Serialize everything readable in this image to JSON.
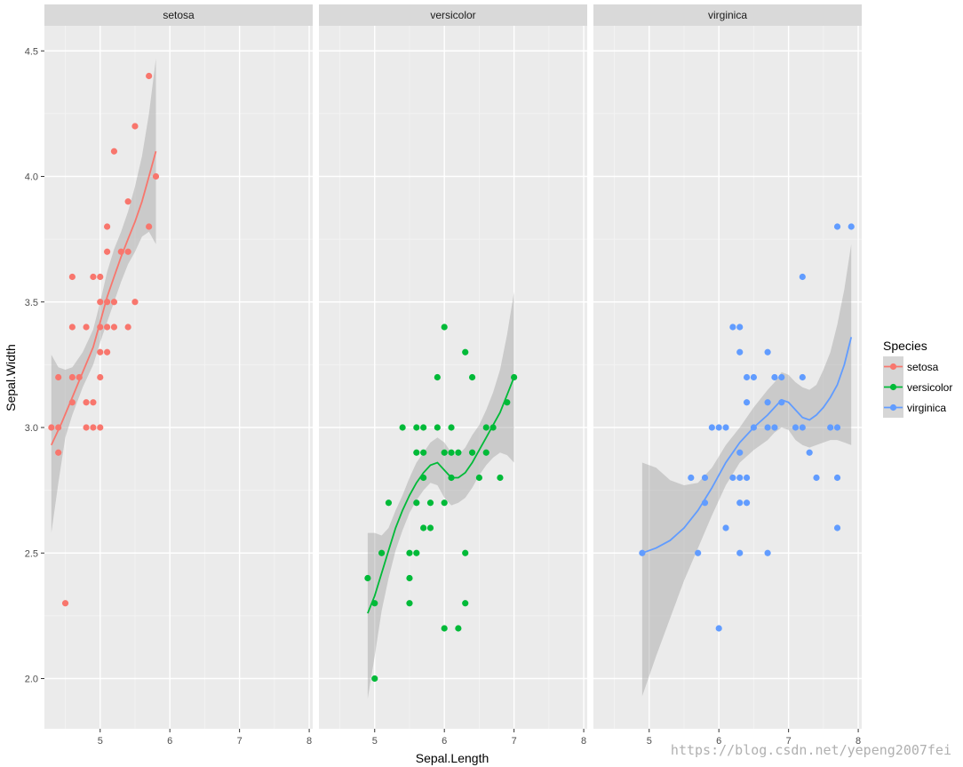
{
  "chart_data": {
    "type": "scatter",
    "facet_by": "Species",
    "xlabel": "Sepal.Length",
    "ylabel": "Sepal.Width",
    "xlim": [
      4.2,
      8.05
    ],
    "ylim": [
      1.8,
      4.6
    ],
    "xticks": [
      5,
      6,
      7,
      8
    ],
    "yticks": [
      2.0,
      2.5,
      3.0,
      3.5,
      4.0,
      4.5
    ],
    "ytick_labels": [
      "2.0",
      "2.5",
      "3.0",
      "3.5",
      "4.0",
      "4.5"
    ],
    "grid": true,
    "smooth": "loess with confidence band",
    "legend": {
      "title": "Species",
      "position": "right",
      "items": [
        {
          "label": "setosa",
          "color": "#F8766D"
        },
        {
          "label": "versicolor",
          "color": "#00BA38"
        },
        {
          "label": "virginica",
          "color": "#619CFF"
        }
      ]
    },
    "panels": [
      {
        "name": "setosa",
        "color": "#F8766D",
        "points": [
          [
            4.3,
            3.0
          ],
          [
            4.4,
            2.9
          ],
          [
            4.4,
            3.0
          ],
          [
            4.4,
            3.2
          ],
          [
            4.5,
            2.3
          ],
          [
            4.6,
            3.1
          ],
          [
            4.6,
            3.2
          ],
          [
            4.6,
            3.4
          ],
          [
            4.6,
            3.6
          ],
          [
            4.7,
            3.2
          ],
          [
            4.8,
            3.0
          ],
          [
            4.8,
            3.1
          ],
          [
            4.8,
            3.4
          ],
          [
            4.9,
            3.0
          ],
          [
            4.9,
            3.1
          ],
          [
            4.9,
            3.6
          ],
          [
            5.0,
            3.0
          ],
          [
            5.0,
            3.2
          ],
          [
            5.0,
            3.3
          ],
          [
            5.0,
            3.4
          ],
          [
            5.0,
            3.5
          ],
          [
            5.0,
            3.6
          ],
          [
            5.1,
            3.3
          ],
          [
            5.1,
            3.4
          ],
          [
            5.1,
            3.5
          ],
          [
            5.1,
            3.7
          ],
          [
            5.1,
            3.8
          ],
          [
            5.2,
            3.4
          ],
          [
            5.2,
            3.5
          ],
          [
            5.2,
            4.1
          ],
          [
            5.3,
            3.7
          ],
          [
            5.4,
            3.4
          ],
          [
            5.4,
            3.7
          ],
          [
            5.4,
            3.9
          ],
          [
            5.5,
            3.5
          ],
          [
            5.5,
            4.2
          ],
          [
            5.7,
            3.8
          ],
          [
            5.7,
            4.4
          ],
          [
            5.8,
            4.0
          ]
        ],
        "fit": [
          [
            4.3,
            2.93
          ],
          [
            4.45,
            3.02
          ],
          [
            4.6,
            3.12
          ],
          [
            4.75,
            3.22
          ],
          [
            4.9,
            3.32
          ],
          [
            5.0,
            3.42
          ],
          [
            5.1,
            3.52
          ],
          [
            5.2,
            3.6
          ],
          [
            5.3,
            3.68
          ],
          [
            5.4,
            3.75
          ],
          [
            5.5,
            3.82
          ],
          [
            5.6,
            3.9
          ],
          [
            5.7,
            4.0
          ],
          [
            5.8,
            4.1
          ]
        ],
        "band": [
          [
            4.3,
            2.58,
            3.29
          ],
          [
            4.4,
            2.78,
            3.24
          ],
          [
            4.5,
            2.96,
            3.23
          ],
          [
            4.6,
            3.05,
            3.24
          ],
          [
            4.75,
            3.16,
            3.3
          ],
          [
            4.9,
            3.25,
            3.39
          ],
          [
            5.0,
            3.34,
            3.5
          ],
          [
            5.1,
            3.42,
            3.62
          ],
          [
            5.2,
            3.5,
            3.71
          ],
          [
            5.3,
            3.58,
            3.78
          ],
          [
            5.4,
            3.65,
            3.86
          ],
          [
            5.5,
            3.7,
            3.96
          ],
          [
            5.6,
            3.76,
            4.08
          ],
          [
            5.7,
            3.78,
            4.25
          ],
          [
            5.8,
            3.73,
            4.47
          ]
        ]
      },
      {
        "name": "versicolor",
        "color": "#00BA38",
        "points": [
          [
            4.9,
            2.4
          ],
          [
            5.0,
            2.0
          ],
          [
            5.0,
            2.3
          ],
          [
            5.1,
            2.5
          ],
          [
            5.2,
            2.7
          ],
          [
            5.4,
            3.0
          ],
          [
            5.5,
            2.3
          ],
          [
            5.5,
            2.4
          ],
          [
            5.5,
            2.5
          ],
          [
            5.6,
            2.5
          ],
          [
            5.6,
            2.7
          ],
          [
            5.6,
            2.9
          ],
          [
            5.6,
            3.0
          ],
          [
            5.7,
            2.6
          ],
          [
            5.7,
            2.8
          ],
          [
            5.7,
            2.9
          ],
          [
            5.7,
            3.0
          ],
          [
            5.8,
            2.6
          ],
          [
            5.8,
            2.7
          ],
          [
            5.9,
            3.0
          ],
          [
            5.9,
            3.2
          ],
          [
            6.0,
            2.2
          ],
          [
            6.0,
            2.7
          ],
          [
            6.0,
            2.9
          ],
          [
            6.0,
            3.4
          ],
          [
            6.1,
            2.8
          ],
          [
            6.1,
            2.9
          ],
          [
            6.1,
            3.0
          ],
          [
            6.2,
            2.2
          ],
          [
            6.2,
            2.9
          ],
          [
            6.3,
            2.3
          ],
          [
            6.3,
            2.5
          ],
          [
            6.3,
            3.3
          ],
          [
            6.4,
            2.9
          ],
          [
            6.4,
            3.2
          ],
          [
            6.5,
            2.8
          ],
          [
            6.6,
            2.9
          ],
          [
            6.6,
            3.0
          ],
          [
            6.7,
            3.0
          ],
          [
            6.8,
            2.8
          ],
          [
            6.9,
            3.1
          ],
          [
            7.0,
            3.2
          ]
        ],
        "fit": [
          [
            4.9,
            2.26
          ],
          [
            5.0,
            2.33
          ],
          [
            5.1,
            2.42
          ],
          [
            5.2,
            2.51
          ],
          [
            5.3,
            2.6
          ],
          [
            5.4,
            2.67
          ],
          [
            5.5,
            2.73
          ],
          [
            5.6,
            2.78
          ],
          [
            5.7,
            2.82
          ],
          [
            5.8,
            2.85
          ],
          [
            5.9,
            2.86
          ],
          [
            6.0,
            2.83
          ],
          [
            6.1,
            2.8
          ],
          [
            6.2,
            2.8
          ],
          [
            6.3,
            2.82
          ],
          [
            6.4,
            2.86
          ],
          [
            6.5,
            2.91
          ],
          [
            6.6,
            2.96
          ],
          [
            6.7,
            3.01
          ],
          [
            6.8,
            3.06
          ],
          [
            6.9,
            3.13
          ],
          [
            7.0,
            3.2
          ]
        ],
        "band": [
          [
            4.9,
            1.92,
            2.58
          ],
          [
            5.0,
            2.09,
            2.58
          ],
          [
            5.1,
            2.27,
            2.57
          ],
          [
            5.2,
            2.4,
            2.6
          ],
          [
            5.3,
            2.51,
            2.67
          ],
          [
            5.4,
            2.59,
            2.73
          ],
          [
            5.5,
            2.66,
            2.8
          ],
          [
            5.6,
            2.71,
            2.86
          ],
          [
            5.7,
            2.75,
            2.9
          ],
          [
            5.8,
            2.78,
            2.94
          ],
          [
            5.9,
            2.77,
            2.96
          ],
          [
            6.0,
            2.72,
            2.94
          ],
          [
            6.1,
            2.69,
            2.9
          ],
          [
            6.2,
            2.7,
            2.89
          ],
          [
            6.3,
            2.72,
            2.92
          ],
          [
            6.4,
            2.76,
            2.97
          ],
          [
            6.5,
            2.81,
            3.01
          ],
          [
            6.6,
            2.85,
            3.07
          ],
          [
            6.7,
            2.88,
            3.14
          ],
          [
            6.8,
            2.9,
            3.23
          ],
          [
            6.9,
            2.89,
            3.37
          ],
          [
            7.0,
            2.86,
            3.54
          ]
        ]
      },
      {
        "name": "virginica",
        "color": "#619CFF",
        "points": [
          [
            4.9,
            2.5
          ],
          [
            5.6,
            2.8
          ],
          [
            5.7,
            2.5
          ],
          [
            5.8,
            2.7
          ],
          [
            5.8,
            2.8
          ],
          [
            5.9,
            3.0
          ],
          [
            6.0,
            2.2
          ],
          [
            6.0,
            3.0
          ],
          [
            6.1,
            2.6
          ],
          [
            6.1,
            3.0
          ],
          [
            6.2,
            2.8
          ],
          [
            6.2,
            3.4
          ],
          [
            6.3,
            2.5
          ],
          [
            6.3,
            2.7
          ],
          [
            6.3,
            2.8
          ],
          [
            6.3,
            2.9
          ],
          [
            6.3,
            3.3
          ],
          [
            6.3,
            3.4
          ],
          [
            6.4,
            2.7
          ],
          [
            6.4,
            2.8
          ],
          [
            6.4,
            3.1
          ],
          [
            6.4,
            3.2
          ],
          [
            6.5,
            3.0
          ],
          [
            6.5,
            3.2
          ],
          [
            6.7,
            2.5
          ],
          [
            6.7,
            3.0
          ],
          [
            6.7,
            3.1
          ],
          [
            6.7,
            3.3
          ],
          [
            6.8,
            3.0
          ],
          [
            6.8,
            3.2
          ],
          [
            6.9,
            3.1
          ],
          [
            6.9,
            3.2
          ],
          [
            7.1,
            3.0
          ],
          [
            7.2,
            3.0
          ],
          [
            7.2,
            3.2
          ],
          [
            7.2,
            3.6
          ],
          [
            7.3,
            2.9
          ],
          [
            7.4,
            2.8
          ],
          [
            7.6,
            3.0
          ],
          [
            7.7,
            2.6
          ],
          [
            7.7,
            2.8
          ],
          [
            7.7,
            3.0
          ],
          [
            7.7,
            3.8
          ],
          [
            7.9,
            3.8
          ]
        ],
        "fit": [
          [
            4.9,
            2.5
          ],
          [
            5.1,
            2.52
          ],
          [
            5.3,
            2.55
          ],
          [
            5.5,
            2.6
          ],
          [
            5.7,
            2.67
          ],
          [
            5.9,
            2.76
          ],
          [
            6.1,
            2.86
          ],
          [
            6.3,
            2.94
          ],
          [
            6.5,
            3.0
          ],
          [
            6.7,
            3.05
          ],
          [
            6.8,
            3.08
          ],
          [
            6.9,
            3.11
          ],
          [
            7.0,
            3.1
          ],
          [
            7.1,
            3.07
          ],
          [
            7.2,
            3.04
          ],
          [
            7.3,
            3.03
          ],
          [
            7.4,
            3.05
          ],
          [
            7.5,
            3.08
          ],
          [
            7.6,
            3.12
          ],
          [
            7.7,
            3.17
          ],
          [
            7.8,
            3.25
          ],
          [
            7.9,
            3.36
          ]
        ],
        "band": [
          [
            4.9,
            1.93,
            2.86
          ],
          [
            5.1,
            2.09,
            2.84
          ],
          [
            5.3,
            2.24,
            2.79
          ],
          [
            5.5,
            2.39,
            2.77
          ],
          [
            5.7,
            2.52,
            2.78
          ],
          [
            5.9,
            2.65,
            2.84
          ],
          [
            6.1,
            2.77,
            2.93
          ],
          [
            6.3,
            2.86,
            3.0
          ],
          [
            6.5,
            2.91,
            3.08
          ],
          [
            6.7,
            2.95,
            3.15
          ],
          [
            6.8,
            2.98,
            3.18
          ],
          [
            6.9,
            3.0,
            3.22
          ],
          [
            7.0,
            2.99,
            3.21
          ],
          [
            7.1,
            2.95,
            3.18
          ],
          [
            7.2,
            2.93,
            3.16
          ],
          [
            7.3,
            2.92,
            3.15
          ],
          [
            7.4,
            2.93,
            3.17
          ],
          [
            7.5,
            2.94,
            3.23
          ],
          [
            7.6,
            2.95,
            3.3
          ],
          [
            7.7,
            2.95,
            3.41
          ],
          [
            7.8,
            2.94,
            3.55
          ],
          [
            7.9,
            2.93,
            3.73
          ]
        ]
      }
    ]
  },
  "watermark": "https://blog.csdn.net/yepeng2007fei"
}
